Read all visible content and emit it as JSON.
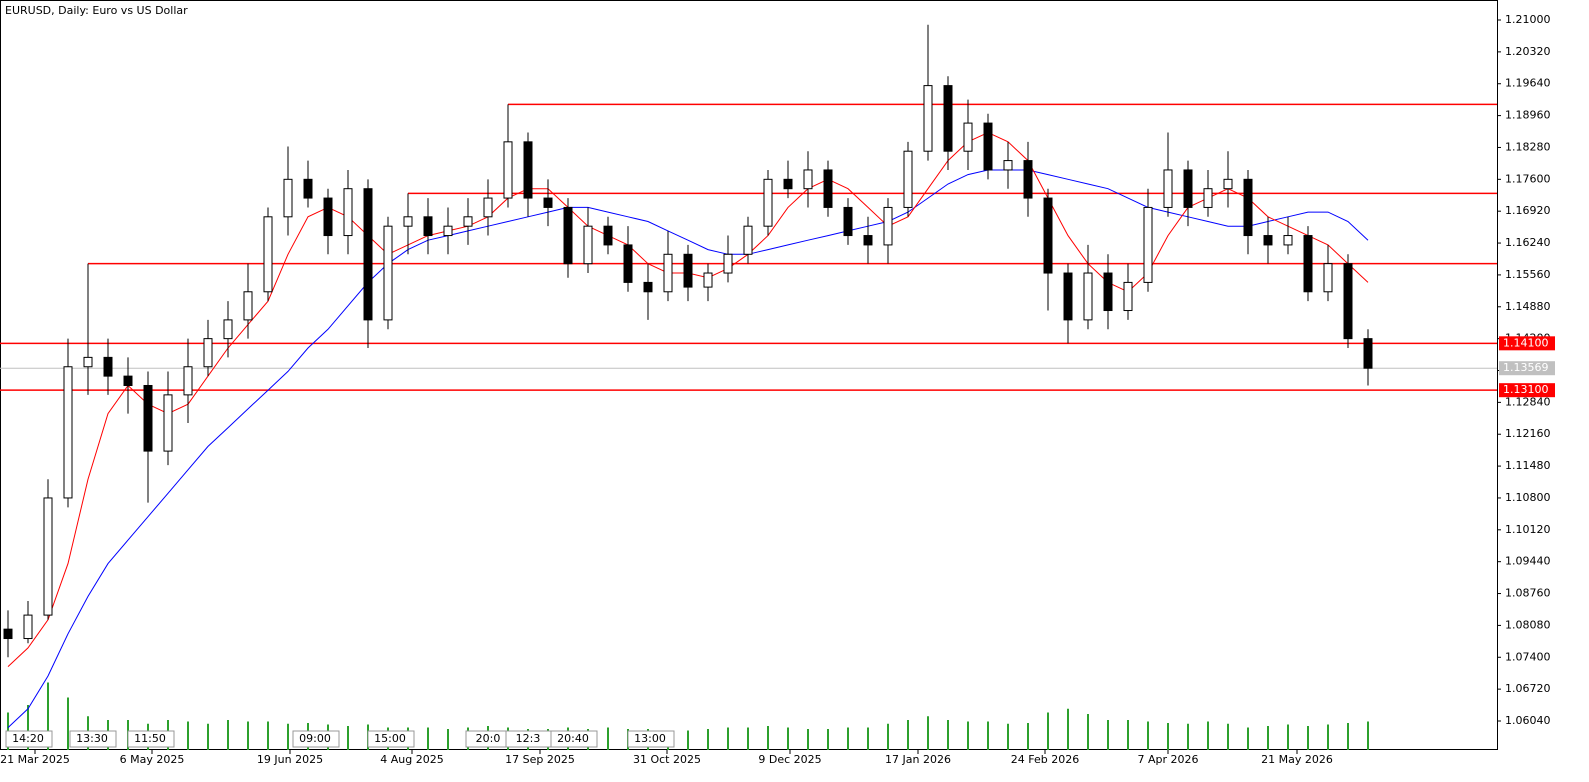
{
  "chart_data": {
    "type": "candlestick",
    "title": "EURUSD, Daily:  Euro vs US Dollar",
    "ylim": [
      1.05421,
      1.21427
    ],
    "xlim": [
      -0.4,
      74.45
    ],
    "yticks": [
      {
        "value": 1.21,
        "label": "1.21000"
      },
      {
        "value": 1.2032,
        "label": "1.20320"
      },
      {
        "value": 1.1964,
        "label": "1.19640"
      },
      {
        "value": 1.1896,
        "label": "1.18960"
      },
      {
        "value": 1.1828,
        "label": "1.18280"
      },
      {
        "value": 1.176,
        "label": "1.17600"
      },
      {
        "value": 1.1692,
        "label": "1.16920"
      },
      {
        "value": 1.1624,
        "label": "1.16240"
      },
      {
        "value": 1.1556,
        "label": "1.15560"
      },
      {
        "value": 1.1488,
        "label": "1.14880"
      },
      {
        "value": 1.142,
        "label": "1.14200"
      },
      {
        "value": 1.1352,
        "label": "1.13520"
      },
      {
        "value": 1.1284,
        "label": "1.12840"
      },
      {
        "value": 1.1216,
        "label": "1.12160"
      },
      {
        "value": 1.1148,
        "label": "1.11480"
      },
      {
        "value": 1.108,
        "label": "1.10800"
      },
      {
        "value": 1.1012,
        "label": "1.10120"
      },
      {
        "value": 1.0944,
        "label": "1.09440"
      },
      {
        "value": 1.0876,
        "label": "1.08760"
      },
      {
        "value": 1.0808,
        "label": "1.08080"
      },
      {
        "value": 1.074,
        "label": "1.07400"
      },
      {
        "value": 1.0672,
        "label": "1.06720"
      },
      {
        "value": 1.0604,
        "label": "1.06040"
      }
    ],
    "xticks": [
      {
        "value": 1.35,
        "label": "21 Mar 2025"
      },
      {
        "value": 7.2,
        "label": "6 May 2025"
      },
      {
        "value": 14.1,
        "label": "19 Jun 2025"
      },
      {
        "value": 20.2,
        "label": "4 Aug 2025"
      },
      {
        "value": 26.6,
        "label": "17 Sep 2025"
      },
      {
        "value": 32.95,
        "label": "31 Oct 2025"
      },
      {
        "value": 39.1,
        "label": "9 Dec 2025"
      },
      {
        "value": 45.5,
        "label": "17 Jan 2026"
      },
      {
        "value": 51.85,
        "label": "24 Feb 2026"
      },
      {
        "value": 58,
        "label": "7 Apr 2026"
      },
      {
        "value": 64.45,
        "label": "21 May 2026"
      }
    ],
    "time_tags": [
      "14:20",
      "13:30",
      "11:50",
      "09:00",
      "15:00",
      "20:0",
      "12:3",
      "20:40",
      "13:00"
    ],
    "open": [
      1.08,
      1.078,
      1.083,
      1.108,
      1.136,
      1.138,
      1.134,
      1.132,
      1.118,
      1.13,
      1.136,
      1.142,
      1.146,
      1.152,
      1.168,
      1.176,
      1.172,
      1.164,
      1.174,
      1.146,
      1.166,
      1.168,
      1.164,
      1.166,
      1.168,
      1.172,
      1.184,
      1.172,
      1.17,
      1.158,
      1.166,
      1.162,
      1.154,
      1.152,
      1.16,
      1.153,
      1.156,
      1.16,
      1.166,
      1.176,
      1.174,
      1.178,
      1.17,
      1.164,
      1.162,
      1.17,
      1.182,
      1.196,
      1.182,
      1.188,
      1.178,
      1.18,
      1.172,
      1.156,
      1.146,
      1.156,
      1.148,
      1.154,
      1.17,
      1.178,
      1.17,
      1.174,
      1.176,
      1.164,
      1.162,
      1.164,
      1.152,
      1.158,
      1.142
    ],
    "high": [
      1.084,
      1.086,
      1.112,
      1.142,
      1.158,
      1.142,
      1.138,
      1.135,
      1.135,
      1.142,
      1.146,
      1.15,
      1.158,
      1.17,
      1.183,
      1.18,
      1.174,
      1.178,
      1.176,
      1.168,
      1.173,
      1.172,
      1.17,
      1.172,
      1.176,
      1.192,
      1.186,
      1.176,
      1.172,
      1.17,
      1.168,
      1.166,
      1.158,
      1.165,
      1.162,
      1.158,
      1.164,
      1.168,
      1.178,
      1.18,
      1.182,
      1.18,
      1.172,
      1.168,
      1.172,
      1.184,
      1.209,
      1.198,
      1.193,
      1.19,
      1.184,
      1.184,
      1.174,
      1.158,
      1.162,
      1.16,
      1.158,
      1.174,
      1.186,
      1.18,
      1.178,
      1.182,
      1.178,
      1.168,
      1.168,
      1.166,
      1.162,
      1.16,
      1.144
    ],
    "low": [
      1.074,
      1.077,
      1.082,
      1.106,
      1.13,
      1.13,
      1.126,
      1.107,
      1.115,
      1.124,
      1.134,
      1.138,
      1.142,
      1.15,
      1.164,
      1.17,
      1.16,
      1.16,
      1.14,
      1.144,
      1.16,
      1.16,
      1.16,
      1.162,
      1.164,
      1.17,
      1.168,
      1.166,
      1.155,
      1.156,
      1.16,
      1.152,
      1.146,
      1.15,
      1.15,
      1.15,
      1.154,
      1.158,
      1.164,
      1.172,
      1.17,
      1.168,
      1.162,
      1.158,
      1.158,
      1.168,
      1.18,
      1.178,
      1.178,
      1.176,
      1.174,
      1.168,
      1.148,
      1.141,
      1.144,
      1.144,
      1.146,
      1.152,
      1.168,
      1.166,
      1.168,
      1.17,
      1.16,
      1.158,
      1.16,
      1.15,
      1.15,
      1.14,
      1.132
    ],
    "close": [
      1.078,
      1.083,
      1.108,
      1.136,
      1.138,
      1.134,
      1.132,
      1.118,
      1.13,
      1.136,
      1.142,
      1.146,
      1.152,
      1.168,
      1.176,
      1.172,
      1.164,
      1.174,
      1.146,
      1.166,
      1.168,
      1.164,
      1.166,
      1.168,
      1.172,
      1.184,
      1.172,
      1.17,
      1.158,
      1.166,
      1.162,
      1.154,
      1.152,
      1.16,
      1.153,
      1.156,
      1.16,
      1.166,
      1.176,
      1.174,
      1.178,
      1.17,
      1.164,
      1.162,
      1.17,
      1.182,
      1.196,
      1.182,
      1.188,
      1.178,
      1.18,
      1.172,
      1.156,
      1.146,
      1.156,
      1.148,
      1.154,
      1.17,
      1.178,
      1.17,
      1.174,
      1.176,
      1.164,
      1.162,
      1.164,
      1.152,
      1.158,
      1.142,
      1.13569
    ],
    "ma_fast": {
      "color": "#ff0000",
      "values": [
        1.072,
        1.076,
        1.082,
        1.094,
        1.112,
        1.126,
        1.132,
        1.128,
        1.126,
        1.128,
        1.134,
        1.14,
        1.145,
        1.15,
        1.16,
        1.168,
        1.17,
        1.168,
        1.164,
        1.16,
        1.162,
        1.164,
        1.165,
        1.166,
        1.168,
        1.172,
        1.174,
        1.174,
        1.17,
        1.166,
        1.164,
        1.162,
        1.158,
        1.156,
        1.156,
        1.155,
        1.157,
        1.16,
        1.164,
        1.17,
        1.174,
        1.176,
        1.174,
        1.17,
        1.166,
        1.168,
        1.174,
        1.18,
        1.184,
        1.186,
        1.184,
        1.18,
        1.172,
        1.164,
        1.158,
        1.154,
        1.152,
        1.156,
        1.164,
        1.17,
        1.172,
        1.174,
        1.172,
        1.168,
        1.166,
        1.164,
        1.162,
        1.158,
        1.154
      ]
    },
    "ma_slow": {
      "color": "#0000ff",
      "values": [
        1.059,
        1.063,
        1.07,
        1.079,
        1.087,
        1.094,
        1.099,
        1.104,
        1.109,
        1.114,
        1.119,
        1.123,
        1.127,
        1.131,
        1.135,
        1.14,
        1.144,
        1.149,
        1.154,
        1.158,
        1.161,
        1.163,
        1.164,
        1.165,
        1.166,
        1.167,
        1.168,
        1.169,
        1.17,
        1.17,
        1.169,
        1.168,
        1.167,
        1.165,
        1.163,
        1.161,
        1.16,
        1.16,
        1.161,
        1.162,
        1.163,
        1.164,
        1.165,
        1.166,
        1.167,
        1.169,
        1.172,
        1.175,
        1.177,
        1.178,
        1.178,
        1.178,
        1.177,
        1.176,
        1.175,
        1.174,
        1.172,
        1.17,
        1.169,
        1.168,
        1.167,
        1.166,
        1.166,
        1.167,
        1.168,
        1.169,
        1.169,
        1.167,
        1.163
      ]
    },
    "volume": {
      "color": "#2ca02c",
      "lim": [
        0,
        100
      ],
      "values": [
        50,
        60,
        90,
        70,
        45,
        40,
        40,
        35,
        40,
        38,
        35,
        40,
        38,
        38,
        35,
        36,
        34,
        32,
        34,
        30,
        30,
        30,
        28,
        30,
        32,
        30,
        28,
        28,
        30,
        28,
        30,
        28,
        28,
        26,
        26,
        28,
        30,
        30,
        32,
        30,
        28,
        28,
        30,
        30,
        35,
        40,
        45,
        40,
        38,
        38,
        35,
        36,
        50,
        55,
        48,
        40,
        40,
        38,
        36,
        35,
        38,
        35,
        30,
        32,
        34,
        32,
        34,
        36,
        38
      ]
    },
    "levels": [
      {
        "value": 1.192,
        "from": 25
      },
      {
        "value": 1.173,
        "from": 20
      },
      {
        "value": 1.158,
        "from": 4
      },
      {
        "value": 1.141,
        "from": -0.4,
        "label": "1.14100"
      },
      {
        "value": 1.131,
        "from": -0.4,
        "label": "1.13100"
      }
    ],
    "level_color": "#ff0000",
    "current_price": 1.13569
  }
}
